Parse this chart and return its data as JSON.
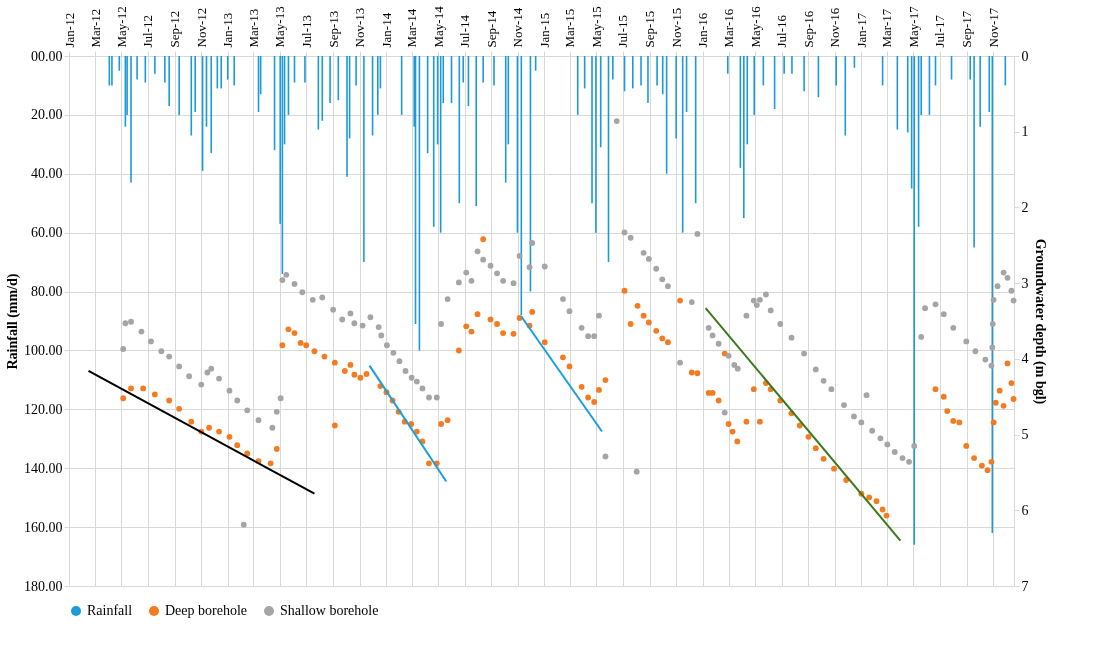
{
  "chart_data": {
    "type": "scatter",
    "xlabel": null,
    "ylabel": "Rainfall (mm/d)",
    "y2label": "Groundwater depth (m bgl)",
    "xlim": [
      "2012-01-01",
      "2017-12-19"
    ],
    "xticks": [
      {
        "value": "2012-01-01",
        "label": "Jan-12"
      },
      {
        "value": "2012-03-01",
        "label": "Mar-12"
      },
      {
        "value": "2012-05-01",
        "label": "May-12"
      },
      {
        "value": "2012-07-01",
        "label": "Jul-12"
      },
      {
        "value": "2012-09-01",
        "label": "Sep-12"
      },
      {
        "value": "2012-11-01",
        "label": "Nov-12"
      },
      {
        "value": "2013-01-01",
        "label": "Jan-13"
      },
      {
        "value": "2013-03-01",
        "label": "Mar-13"
      },
      {
        "value": "2013-05-01",
        "label": "May-13"
      },
      {
        "value": "2013-07-01",
        "label": "Jul-13"
      },
      {
        "value": "2013-09-01",
        "label": "Sep-13"
      },
      {
        "value": "2013-11-01",
        "label": "Nov-13"
      },
      {
        "value": "2014-01-01",
        "label": "Jan-14"
      },
      {
        "value": "2014-03-01",
        "label": "Mar-14"
      },
      {
        "value": "2014-05-01",
        "label": "May-14"
      },
      {
        "value": "2014-07-01",
        "label": "Jul-14"
      },
      {
        "value": "2014-09-01",
        "label": "Sep-14"
      },
      {
        "value": "2014-11-01",
        "label": "Nov-14"
      },
      {
        "value": "2015-01-01",
        "label": "Jan-15"
      },
      {
        "value": "2015-03-01",
        "label": "Mar-15"
      },
      {
        "value": "2015-05-01",
        "label": "May-15"
      },
      {
        "value": "2015-07-01",
        "label": "Jul-15"
      },
      {
        "value": "2015-09-01",
        "label": "Sep-15"
      },
      {
        "value": "2015-11-01",
        "label": "Nov-15"
      },
      {
        "value": "2016-01-01",
        "label": "Jan-16"
      },
      {
        "value": "2016-03-01",
        "label": "Mar-16"
      },
      {
        "value": "2016-05-01",
        "label": "May-16"
      },
      {
        "value": "2016-07-01",
        "label": "Jul-16"
      },
      {
        "value": "2016-09-01",
        "label": "Sep-16"
      },
      {
        "value": "2016-11-01",
        "label": "Nov-16"
      },
      {
        "value": "2017-01-01",
        "label": "Jan-17"
      },
      {
        "value": "2017-03-01",
        "label": "Mar-17"
      },
      {
        "value": "2017-05-01",
        "label": "May-17"
      },
      {
        "value": "2017-07-01",
        "label": "Jul-17"
      },
      {
        "value": "2017-09-01",
        "label": "Sep-17"
      },
      {
        "value": "2017-11-01",
        "label": "Nov-17"
      }
    ],
    "ylim": [
      180,
      0
    ],
    "yticks": [
      {
        "value": 0,
        "label": "00.00"
      },
      {
        "value": 20,
        "label": "20.00"
      },
      {
        "value": 40,
        "label": "40.00"
      },
      {
        "value": 60,
        "label": "60.00"
      },
      {
        "value": 80,
        "label": "80.00"
      },
      {
        "value": 100,
        "label": "100.00"
      },
      {
        "value": 120,
        "label": "120.00"
      },
      {
        "value": 140,
        "label": "140.00"
      },
      {
        "value": 160,
        "label": "160.00"
      },
      {
        "value": 180,
        "label": "180.00"
      }
    ],
    "y2lim": [
      7,
      0
    ],
    "y2ticks": [
      0,
      1,
      2,
      3,
      4,
      5,
      6,
      7
    ],
    "grid": true,
    "legend": "bottom",
    "marker": "circle",
    "series": [
      {
        "name": "Rainfall",
        "type": "bar",
        "color": "#1b9ad6",
        "x": [
          "2012-04-03",
          "2012-04-09",
          "2012-04-26",
          "2012-05-10",
          "2012-05-14",
          "2012-05-23",
          "2012-06-06",
          "2012-06-25",
          "2012-07-17",
          "2012-08-09",
          "2012-08-19",
          "2012-09-11",
          "2012-10-09",
          "2012-10-18",
          "2012-11-04",
          "2012-11-13",
          "2012-11-24",
          "2012-12-08",
          "2012-12-17",
          "2013-01-01",
          "2013-01-16",
          "2013-03-13",
          "2013-03-18",
          "2013-04-19",
          "2013-05-02",
          "2013-05-07",
          "2013-05-12",
          "2013-05-21",
          "2013-06-04",
          "2013-06-28",
          "2013-07-29",
          "2013-08-07",
          "2013-08-25",
          "2013-09-13",
          "2013-10-03",
          "2013-10-09",
          "2013-10-24",
          "2013-11-11",
          "2013-12-01",
          "2013-12-13",
          "2013-12-19",
          "2014-02-06",
          "2014-03-07",
          "2014-03-10",
          "2014-03-19",
          "2014-04-07",
          "2014-04-21",
          "2014-04-30",
          "2014-05-07",
          "2014-05-13",
          "2014-06-01",
          "2014-06-19",
          "2014-06-28",
          "2014-07-10",
          "2014-07-28",
          "2014-08-13",
          "2014-09-07",
          "2014-10-04",
          "2014-10-10",
          "2014-10-31",
          "2014-11-09",
          "2014-11-30",
          "2014-12-12",
          "2015-03-19",
          "2015-04-04",
          "2015-04-21",
          "2015-04-30",
          "2015-05-11",
          "2015-05-29",
          "2015-06-08",
          "2015-07-05",
          "2015-07-24",
          "2015-08-12",
          "2015-08-28",
          "2015-09-18",
          "2015-10-01",
          "2015-10-10",
          "2015-11-01",
          "2015-11-16",
          "2015-11-25",
          "2015-12-16",
          "2016-02-28",
          "2016-03-28",
          "2016-04-05",
          "2016-04-13",
          "2016-04-29",
          "2016-05-20",
          "2016-06-15",
          "2016-07-07",
          "2016-07-25",
          "2016-08-22",
          "2016-09-24",
          "2016-11-04",
          "2016-11-25",
          "2016-12-16",
          "2017-02-19",
          "2017-03-25",
          "2017-04-18",
          "2017-04-27",
          "2017-05-03",
          "2017-05-13",
          "2017-05-19",
          "2017-06-07",
          "2017-06-21",
          "2017-07-28",
          "2017-09-09",
          "2017-09-18",
          "2017-10-02",
          "2017-10-23",
          "2017-10-30",
          "2017-11-29"
        ],
        "values": [
          10,
          10,
          5,
          24,
          20,
          43,
          8,
          9,
          6,
          9,
          17,
          20,
          27,
          19,
          39,
          24,
          33,
          11,
          11,
          8,
          10,
          19,
          13,
          32,
          57,
          74,
          30,
          20,
          9,
          9,
          25,
          22,
          16,
          15,
          41,
          28,
          10,
          70,
          27,
          20,
          11,
          20,
          24,
          91,
          100,
          33,
          58,
          30,
          60,
          16,
          16,
          50,
          9,
          17,
          51,
          9,
          10,
          43,
          30,
          60,
          88,
          80,
          5,
          20,
          11,
          50,
          60,
          31,
          70,
          8,
          12,
          11,
          10,
          16,
          10,
          13,
          40,
          28,
          60,
          19,
          50,
          6,
          38,
          55,
          30,
          20,
          10,
          18,
          6,
          6,
          12,
          14,
          10,
          27,
          4,
          10,
          25,
          26,
          45,
          166,
          58,
          20,
          20,
          10,
          8,
          8,
          65,
          24,
          19,
          162,
          10
        ]
      },
      {
        "name": "Deep borehole",
        "type": "scatter",
        "axis": "y2",
        "color": "#f47b20",
        "x": [
          "2012-05-05",
          "2012-05-23",
          "2012-06-20",
          "2012-07-17",
          "2012-08-19",
          "2012-09-11",
          "2012-10-09",
          "2012-11-01",
          "2012-11-19",
          "2012-12-12",
          "2013-01-05",
          "2013-01-23",
          "2013-02-15",
          "2013-03-13",
          "2013-04-10",
          "2013-04-24",
          "2013-05-07",
          "2013-05-21",
          "2013-06-04",
          "2013-06-18",
          "2013-07-01",
          "2013-07-20",
          "2013-08-12",
          "2013-09-05",
          "2013-09-05",
          "2013-09-28",
          "2013-10-11",
          "2013-10-20",
          "2013-11-03",
          "2013-11-17",
          "2013-12-19",
          "2014-01-02",
          "2014-01-16",
          "2014-01-30",
          "2014-02-13",
          "2014-02-28",
          "2014-03-13",
          "2014-03-26",
          "2014-04-10",
          "2014-04-28",
          "2014-05-08",
          "2014-05-23",
          "2014-06-18",
          "2014-07-05",
          "2014-07-17",
          "2014-07-31",
          "2014-08-13",
          "2014-08-30",
          "2014-09-14",
          "2014-09-28",
          "2014-10-22",
          "2014-11-05",
          "2014-11-28",
          "2014-12-04",
          "2015-01-02",
          "2015-02-13",
          "2015-02-28",
          "2015-03-28",
          "2015-04-12",
          "2015-04-26",
          "2015-05-07",
          "2015-05-22",
          "2015-07-05",
          "2015-07-19",
          "2015-08-04",
          "2015-08-18",
          "2015-08-30",
          "2015-09-16",
          "2015-09-30",
          "2015-10-13",
          "2015-11-10",
          "2015-12-07",
          "2015-12-20",
          "2016-01-15",
          "2016-01-24",
          "2016-02-07",
          "2016-02-21",
          "2016-03-01",
          "2016-03-10",
          "2016-03-21",
          "2016-04-11",
          "2016-04-28",
          "2016-05-12",
          "2016-05-26",
          "2016-06-06",
          "2016-06-28",
          "2016-07-24",
          "2016-08-12",
          "2016-09-01",
          "2016-09-18",
          "2016-10-06",
          "2016-10-30",
          "2016-11-27",
          "2017-01-01",
          "2017-01-19",
          "2017-02-05",
          "2017-02-19",
          "2017-02-28",
          "2017-06-21",
          "2017-07-10",
          "2017-07-18",
          "2017-08-01",
          "2017-08-15",
          "2017-08-31",
          "2017-09-18",
          "2017-10-06",
          "2017-10-19",
          "2017-10-28",
          "2017-11-02",
          "2017-11-07",
          "2017-11-16",
          "2017-11-25",
          "2017-12-04",
          "2017-12-13",
          "2017-12-18"
        ],
        "values": [
          4.52,
          4.39,
          4.39,
          4.47,
          4.55,
          4.66,
          4.83,
          4.96,
          4.91,
          4.96,
          5.03,
          5.14,
          5.25,
          5.35,
          5.38,
          5.19,
          3.82,
          3.61,
          3.66,
          3.79,
          3.82,
          3.9,
          3.97,
          4.88,
          4.05,
          4.16,
          4.08,
          4.21,
          4.25,
          4.2,
          4.36,
          4.44,
          4.55,
          4.7,
          4.83,
          4.86,
          4.96,
          5.09,
          5.38,
          5.38,
          4.86,
          4.81,
          3.89,
          3.57,
          3.64,
          3.41,
          2.42,
          3.48,
          3.54,
          3.66,
          3.67,
          3.46,
          3.56,
          3.38,
          3.78,
          3.98,
          4.1,
          4.37,
          4.51,
          4.57,
          4.41,
          4.28,
          3.1,
          3.54,
          3.3,
          3.43,
          3.52,
          3.63,
          3.73,
          3.78,
          3.23,
          4.18,
          4.19,
          4.45,
          4.45,
          4.55,
          3.93,
          4.86,
          4.96,
          5.09,
          4.83,
          4.4,
          4.83,
          4.32,
          4.4,
          4.55,
          4.72,
          4.88,
          5.03,
          5.18,
          5.32,
          5.45,
          5.6,
          5.78,
          5.83,
          5.88,
          5.99,
          6.07,
          4.4,
          4.5,
          4.69,
          4.82,
          4.84,
          5.15,
          5.31,
          5.41,
          5.47,
          5.36,
          4.84,
          4.58,
          4.42,
          4.62,
          4.06,
          4.32,
          4.53
        ]
      },
      {
        "name": "Shallow borehole",
        "type": "scatter",
        "axis": "y2",
        "color": "#a5a5a5",
        "x": [
          "2012-05-05",
          "2012-05-10",
          "2012-05-23",
          "2012-06-16",
          "2012-07-08",
          "2012-08-01",
          "2012-08-19",
          "2012-09-11",
          "2012-10-04",
          "2012-11-01",
          "2012-11-15",
          "2012-11-24",
          "2012-12-12",
          "2013-01-05",
          "2013-01-23",
          "2013-02-07",
          "2013-02-15",
          "2013-03-13",
          "2013-04-14",
          "2013-04-24",
          "2013-05-03",
          "2013-05-07",
          "2013-05-16",
          "2013-06-04",
          "2013-06-22",
          "2013-07-16",
          "2013-08-07",
          "2013-09-01",
          "2013-09-22",
          "2013-10-11",
          "2013-10-20",
          "2013-11-08",
          "2013-11-26",
          "2013-12-15",
          "2013-12-21",
          "2014-01-03",
          "2014-01-18",
          "2014-02-01",
          "2014-02-15",
          "2014-03-01",
          "2014-03-13",
          "2014-03-26",
          "2014-04-10",
          "2014-04-28",
          "2014-05-08",
          "2014-05-23",
          "2014-06-18",
          "2014-07-05",
          "2014-07-17",
          "2014-07-31",
          "2014-08-13",
          "2014-08-30",
          "2014-09-14",
          "2014-09-28",
          "2014-10-22",
          "2014-11-05",
          "2014-11-28",
          "2014-12-04",
          "2015-01-02",
          "2015-02-13",
          "2015-02-28",
          "2015-03-28",
          "2015-04-12",
          "2015-04-26",
          "2015-05-07",
          "2015-05-22",
          "2015-06-17",
          "2015-07-05",
          "2015-07-19",
          "2015-08-02",
          "2015-08-18",
          "2015-08-30",
          "2015-09-16",
          "2015-09-30",
          "2015-10-13",
          "2015-11-10",
          "2015-12-07",
          "2015-12-20",
          "2016-01-15",
          "2016-01-24",
          "2016-02-07",
          "2016-02-21",
          "2016-03-01",
          "2016-03-14",
          "2016-03-22",
          "2016-04-11",
          "2016-04-28",
          "2016-05-05",
          "2016-05-12",
          "2016-05-26",
          "2016-06-06",
          "2016-06-28",
          "2016-07-24",
          "2016-08-22",
          "2016-09-18",
          "2016-10-06",
          "2016-10-24",
          "2016-11-22",
          "2016-12-15",
          "2017-01-01",
          "2017-01-13",
          "2017-01-26",
          "2017-02-14",
          "2017-03-02",
          "2017-03-19",
          "2017-04-06",
          "2017-04-21",
          "2017-05-03",
          "2017-05-19",
          "2017-05-28",
          "2017-06-21",
          "2017-07-10",
          "2017-08-01",
          "2017-08-31",
          "2017-09-21",
          "2017-10-14",
          "2017-10-28",
          "2017-10-30",
          "2017-10-31",
          "2017-11-02",
          "2017-11-11",
          "2017-11-25",
          "2017-12-04",
          "2017-12-13",
          "2017-12-18"
        ],
        "values": [
          3.87,
          3.53,
          3.51,
          3.64,
          3.77,
          3.9,
          3.97,
          4.1,
          4.23,
          4.34,
          4.18,
          4.13,
          4.26,
          4.42,
          4.55,
          6.19,
          4.68,
          4.81,
          4.91,
          4.7,
          4.52,
          2.96,
          2.89,
          3.01,
          3.12,
          3.22,
          3.19,
          3.35,
          3.48,
          3.4,
          3.53,
          3.56,
          3.45,
          3.58,
          3.69,
          3.82,
          3.92,
          4.03,
          4.16,
          4.25,
          4.3,
          4.39,
          4.51,
          4.51,
          3.54,
          3.21,
          2.99,
          2.86,
          2.97,
          2.58,
          2.69,
          2.77,
          2.87,
          2.97,
          3.0,
          2.64,
          2.79,
          2.47,
          2.78,
          3.21,
          3.37,
          3.59,
          3.7,
          3.7,
          3.43,
          5.29,
          0.86,
          2.33,
          2.4,
          5.49,
          2.6,
          2.68,
          2.81,
          2.95,
          3.04,
          4.05,
          3.25,
          2.35,
          3.59,
          3.69,
          3.8,
          4.71,
          3.96,
          4.08,
          4.13,
          3.43,
          3.23,
          3.29,
          3.22,
          3.15,
          3.36,
          3.54,
          3.72,
          3.93,
          4.14,
          4.29,
          4.4,
          4.61,
          4.76,
          4.84,
          4.48,
          4.95,
          5.05,
          5.13,
          5.23,
          5.31,
          5.36,
          5.15,
          3.71,
          3.33,
          3.28,
          3.41,
          3.59,
          3.77,
          3.9,
          4.01,
          4.09,
          3.85,
          3.54,
          3.22,
          3.04,
          2.86,
          2.93,
          3.1,
          3.23
        ]
      },
      {
        "type": "line",
        "marker": "none",
        "axis": "y2",
        "color": "#000000",
        "x": [
          "2012-02-15",
          "2013-07-20"
        ],
        "values": [
          4.16,
          5.78
        ]
      },
      {
        "type": "line",
        "marker": "none",
        "axis": "y2",
        "color": "#1a9fd9",
        "x": [
          "2013-11-24",
          "2014-05-20"
        ],
        "values": [
          4.09,
          5.62
        ]
      },
      {
        "type": "line",
        "marker": "none",
        "axis": "y2",
        "color": "#1a9fd9",
        "x": [
          "2014-11-09",
          "2015-05-14"
        ],
        "values": [
          3.44,
          4.96
        ]
      },
      {
        "type": "line",
        "marker": "none",
        "axis": "y2",
        "color": "#3a7a1c",
        "x": [
          "2016-01-08",
          "2017-04-01"
        ],
        "values": [
          3.33,
          6.4
        ]
      }
    ]
  }
}
